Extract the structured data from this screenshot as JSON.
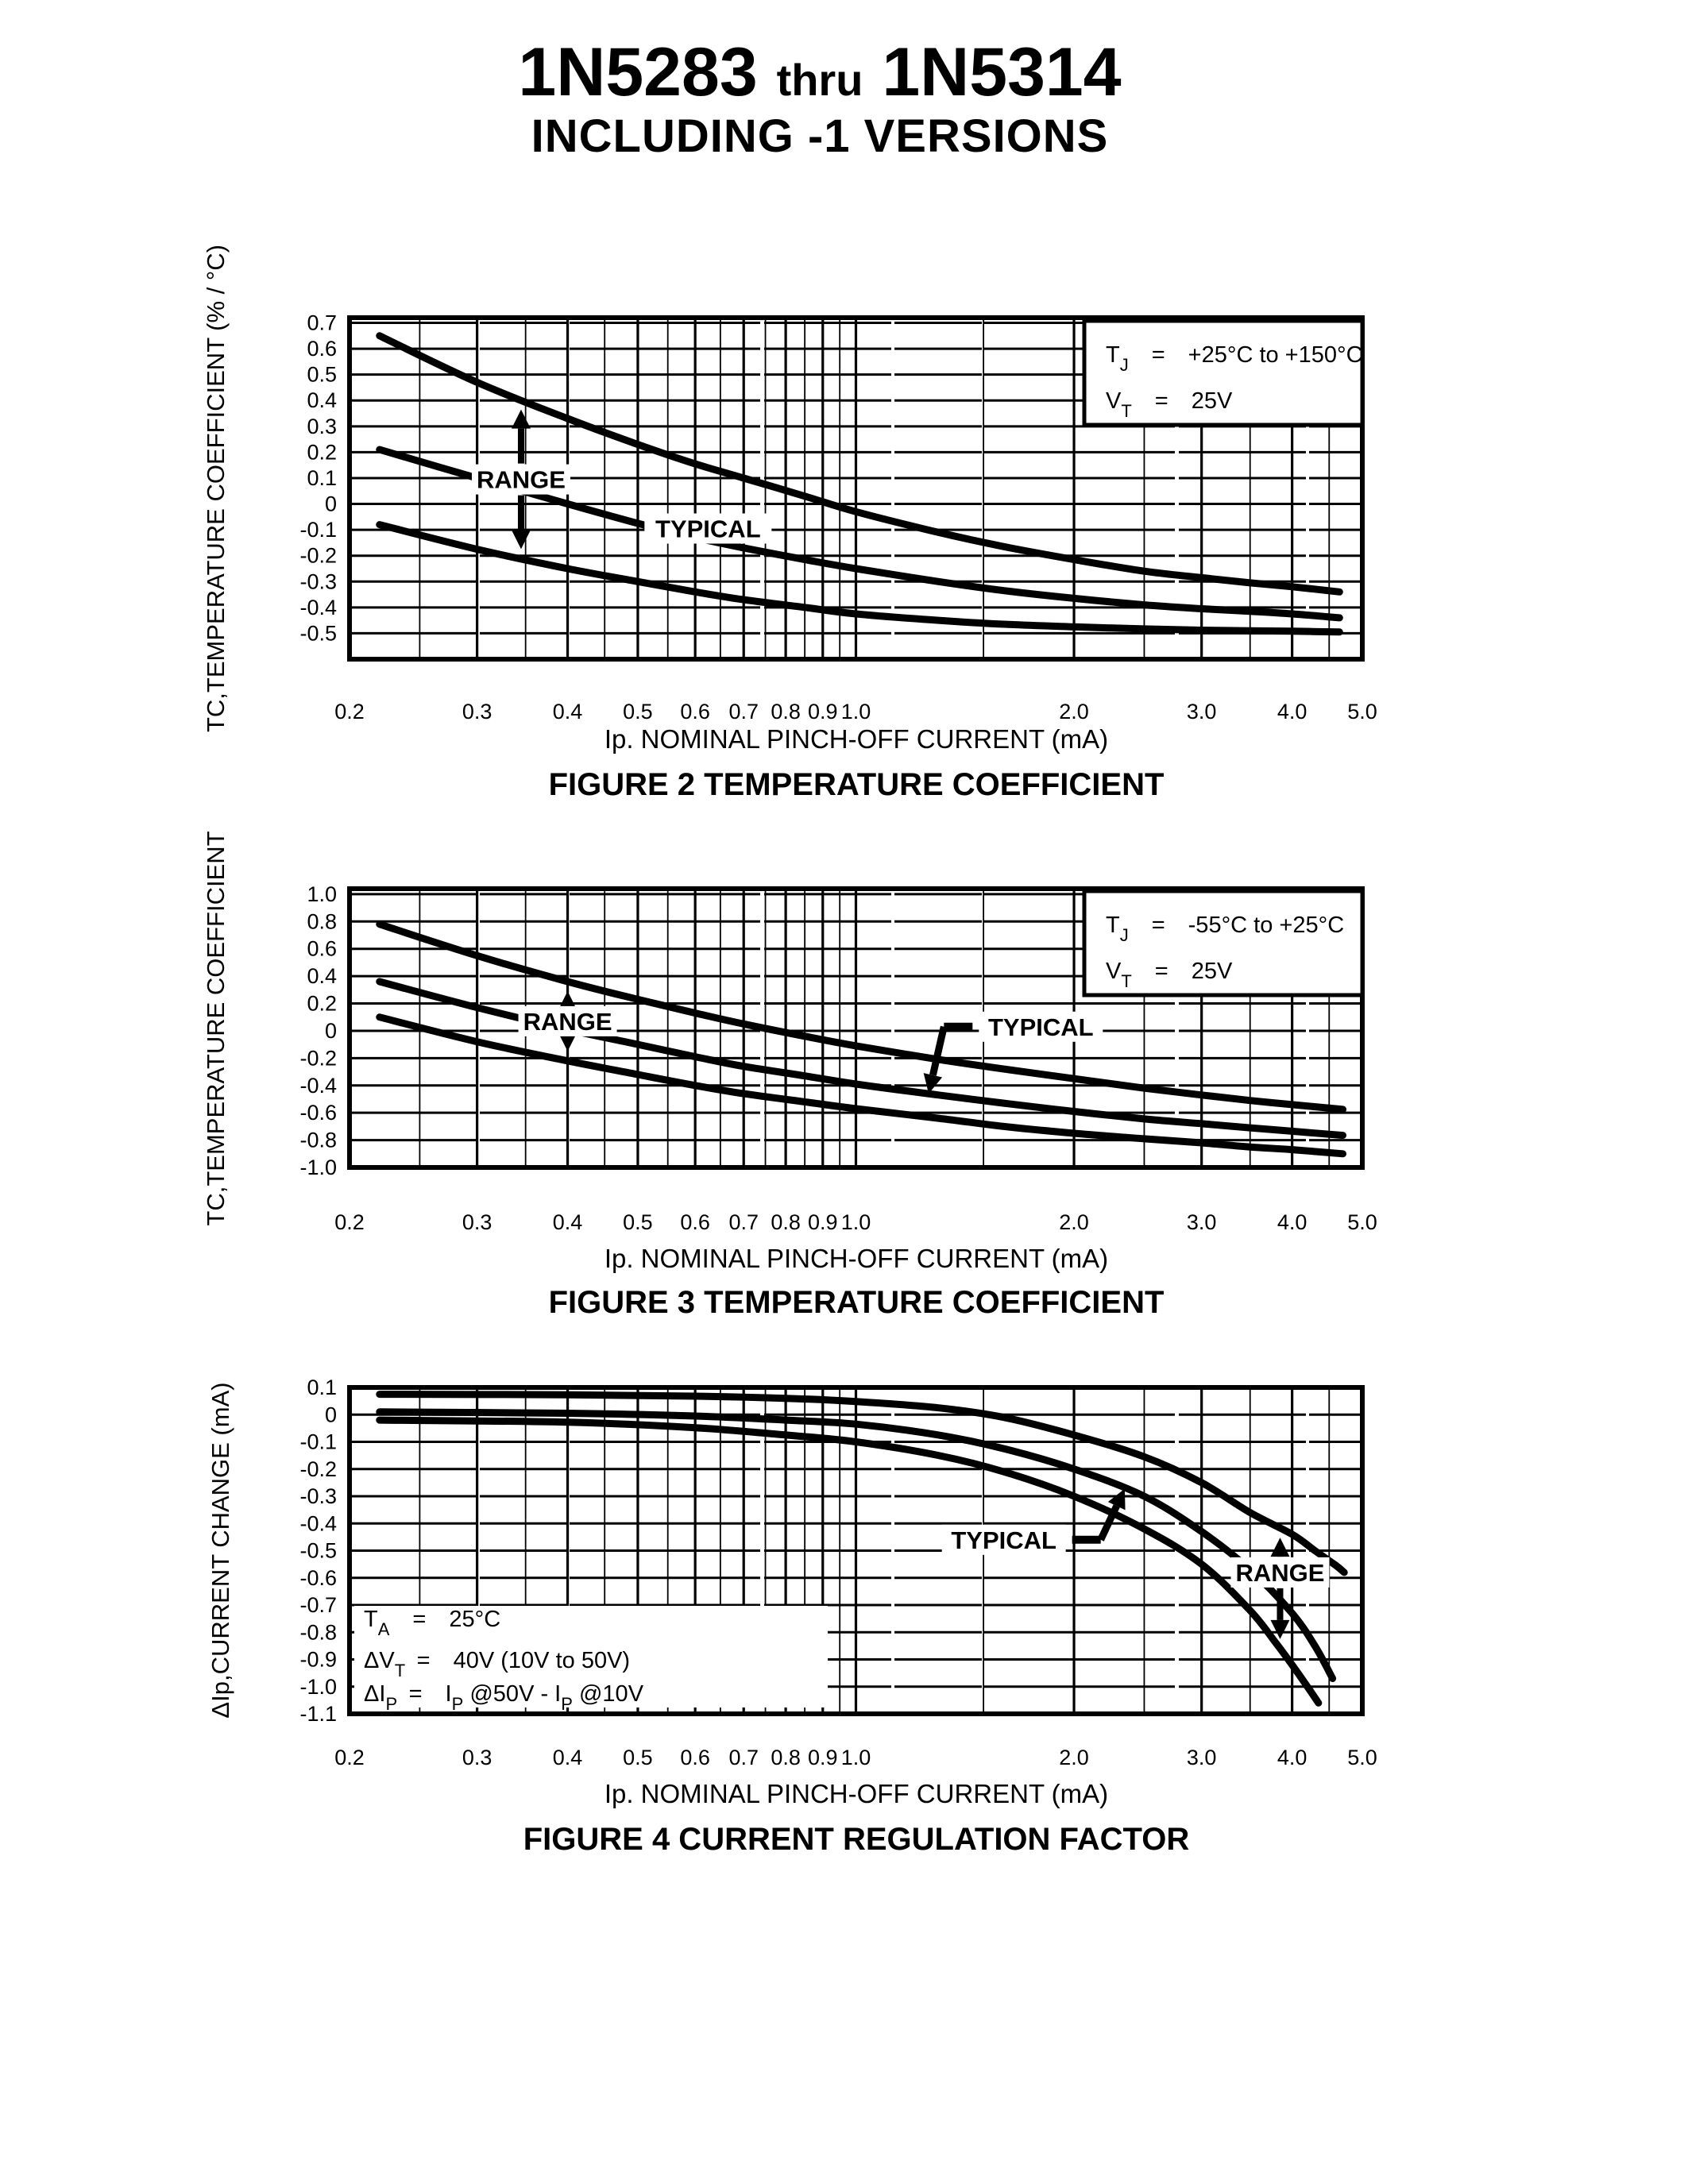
{
  "page": {
    "title_part1": "1N5283",
    "title_thru": "thru",
    "title_part2": "1N5314",
    "subtitle": "INCLUDING -1 VERSIONS"
  },
  "chart_data": [
    {
      "type": "line",
      "figure_number": "Figure 2",
      "title": "FIGURE 2 TEMPERATURE COEFFICIENT",
      "xlabel": "Ip. NOMINAL PINCH-OFF CURRENT (mA)",
      "ylabel": "TC,TEMPERATURE COEFFICIENT (% / °C)",
      "x_scale": "log",
      "grid": "on",
      "xlim": [
        0.2,
        5.0
      ],
      "ylim": [
        -0.6,
        0.72
      ],
      "x_ticks": [
        "0.2",
        "0.3",
        "0.4",
        "0.5",
        "0.6",
        "0.7",
        "0.8",
        "0.9",
        "1.0",
        "2.0",
        "3.0",
        "4.0",
        "5.0"
      ],
      "y_ticks": [
        "0.7",
        "0.6",
        "0.5",
        "0.4",
        "0.3",
        "0.2",
        "0.1",
        "0",
        "-0.1",
        "-0.2",
        "-0.3",
        "-0.4",
        "-0.5"
      ],
      "legend_lines": [
        [
          {
            "t": "T"
          },
          {
            "s": "J"
          },
          {
            "t": "  =  +25°C to +150°C"
          }
        ],
        [
          {
            "t": "V"
          },
          {
            "s": "T"
          },
          {
            "t": "  =  25V"
          }
        ]
      ],
      "annotations": {
        "range": "RANGE",
        "typical": "TYPICAL"
      },
      "series": [
        {
          "name": "range-maximum",
          "x": [
            0.22,
            0.3,
            0.4,
            0.5,
            0.6,
            0.7,
            0.85,
            1.0,
            1.3,
            1.6,
            2.0,
            2.5,
            3.0,
            3.5,
            4.0,
            4.65
          ],
          "y": [
            0.65,
            0.47,
            0.33,
            0.23,
            0.155,
            0.1,
            0.03,
            -0.03,
            -0.11,
            -0.165,
            -0.215,
            -0.26,
            -0.285,
            -0.305,
            -0.32,
            -0.34
          ]
        },
        {
          "name": "typical",
          "x": [
            0.22,
            0.3,
            0.4,
            0.5,
            0.6,
            0.7,
            0.85,
            1.0,
            1.3,
            1.6,
            2.0,
            2.5,
            3.0,
            3.5,
            4.0,
            4.65
          ],
          "y": [
            0.21,
            0.1,
            0.0,
            -0.075,
            -0.13,
            -0.17,
            -0.215,
            -0.25,
            -0.3,
            -0.335,
            -0.365,
            -0.39,
            -0.405,
            -0.415,
            -0.425,
            -0.44
          ]
        },
        {
          "name": "range-minimum",
          "x": [
            0.22,
            0.3,
            0.4,
            0.5,
            0.6,
            0.7,
            0.85,
            1.0,
            1.3,
            1.6,
            2.0,
            2.5,
            3.0,
            3.5,
            4.0,
            4.65
          ],
          "y": [
            -0.08,
            -0.175,
            -0.25,
            -0.3,
            -0.34,
            -0.37,
            -0.4,
            -0.425,
            -0.45,
            -0.465,
            -0.475,
            -0.483,
            -0.488,
            -0.49,
            -0.492,
            -0.495
          ]
        }
      ]
    },
    {
      "type": "line",
      "figure_number": "Figure 3",
      "title": "FIGURE 3 TEMPERATURE COEFFICIENT",
      "xlabel": "Ip. NOMINAL PINCH-OFF CURRENT (mA)",
      "ylabel": "TC,TEMPERATURE COEFFICIENT",
      "x_scale": "log",
      "grid": "on",
      "xlim": [
        0.2,
        5.0
      ],
      "ylim": [
        -1.0,
        1.04
      ],
      "x_ticks": [
        "0.2",
        "0.3",
        "0.4",
        "0.5",
        "0.6",
        "0.7",
        "0.8",
        "0.9",
        "1.0",
        "2.0",
        "3.0",
        "4.0",
        "5.0"
      ],
      "y_ticks": [
        "1.0",
        "0.8",
        "0.6",
        "0.4",
        "0.2",
        "0",
        "-0.2",
        "-0.4",
        "-0.6",
        "-0.8",
        "-1.0"
      ],
      "legend_lines": [
        [
          {
            "t": "T"
          },
          {
            "s": "J"
          },
          {
            "t": "  =  -55°C to +25°C"
          }
        ],
        [
          {
            "t": "V"
          },
          {
            "s": "T"
          },
          {
            "t": "  =  25V"
          }
        ]
      ],
      "annotations": {
        "range": "RANGE",
        "typical": "TYPICAL"
      },
      "series": [
        {
          "name": "range-maximum",
          "x": [
            0.22,
            0.3,
            0.4,
            0.5,
            0.6,
            0.7,
            0.85,
            1.0,
            1.3,
            1.6,
            2.0,
            2.5,
            3.0,
            3.5,
            4.0,
            4.7
          ],
          "y": [
            0.78,
            0.55,
            0.36,
            0.23,
            0.13,
            0.05,
            -0.04,
            -0.11,
            -0.21,
            -0.28,
            -0.35,
            -0.42,
            -0.47,
            -0.51,
            -0.54,
            -0.575
          ]
        },
        {
          "name": "typical",
          "x": [
            0.22,
            0.3,
            0.4,
            0.5,
            0.6,
            0.7,
            0.85,
            1.0,
            1.3,
            1.6,
            2.0,
            2.5,
            3.0,
            3.5,
            4.0,
            4.7
          ],
          "y": [
            0.36,
            0.17,
            0.01,
            -0.1,
            -0.19,
            -0.26,
            -0.33,
            -0.39,
            -0.47,
            -0.53,
            -0.59,
            -0.645,
            -0.68,
            -0.71,
            -0.735,
            -0.765
          ]
        },
        {
          "name": "range-minimum",
          "x": [
            0.22,
            0.3,
            0.4,
            0.5,
            0.6,
            0.7,
            0.85,
            1.0,
            1.3,
            1.6,
            2.0,
            2.5,
            3.0,
            3.5,
            4.0,
            4.7
          ],
          "y": [
            0.1,
            -0.08,
            -0.22,
            -0.32,
            -0.4,
            -0.46,
            -0.52,
            -0.57,
            -0.64,
            -0.7,
            -0.75,
            -0.79,
            -0.82,
            -0.85,
            -0.87,
            -0.9
          ]
        }
      ]
    },
    {
      "type": "line",
      "figure_number": "Figure 4",
      "title": "FIGURE 4 CURRENT REGULATION FACTOR",
      "xlabel": "Ip. NOMINAL PINCH-OFF CURRENT (mA)",
      "ylabel": "ΔIp,CURRENT CHANGE (mA)",
      "x_scale": "log",
      "grid": "on",
      "xlim": [
        0.2,
        5.0
      ],
      "ylim": [
        -1.1,
        0.1
      ],
      "x_ticks": [
        "0.2",
        "0.3",
        "0.4",
        "0.5",
        "0.6",
        "0.7",
        "0.8",
        "0.9",
        "1.0",
        "2.0",
        "3.0",
        "4.0",
        "5.0"
      ],
      "y_ticks": [
        "0.1",
        "0",
        "-0.1",
        "-0.2",
        "-0.3",
        "-0.4",
        "-0.5",
        "-0.6",
        "-0.7",
        "-0.8",
        "-0.9",
        "-1.0",
        "-1.1"
      ],
      "conditions_lines": [
        [
          {
            "t": "T"
          },
          {
            "s": "A"
          },
          {
            "t": "  =  25°C"
          }
        ],
        [
          {
            "t": "ΔV"
          },
          {
            "s": "T"
          },
          {
            "t": " =  40V (10V to 50V)"
          }
        ],
        [
          {
            "t": "ΔI"
          },
          {
            "s": "P"
          },
          {
            "t": " =  I"
          },
          {
            "s": "P"
          },
          {
            "t": " @50V - I"
          },
          {
            "s": "P"
          },
          {
            "t": " @10V"
          }
        ]
      ],
      "annotations": {
        "range": "RANGE",
        "typical": "TYPICAL"
      },
      "series": [
        {
          "name": "range-maximum",
          "x": [
            0.22,
            0.4,
            0.6,
            0.8,
            1.0,
            1.3,
            1.6,
            2.0,
            2.5,
            3.0,
            3.5,
            4.0,
            4.3,
            4.6,
            4.72
          ],
          "y": [
            0.075,
            0.073,
            0.068,
            0.06,
            0.048,
            0.025,
            -0.01,
            -0.075,
            -0.155,
            -0.25,
            -0.36,
            -0.44,
            -0.5,
            -0.555,
            -0.58
          ]
        },
        {
          "name": "typical",
          "x": [
            0.22,
            0.4,
            0.6,
            0.8,
            1.0,
            1.3,
            1.6,
            2.0,
            2.5,
            3.0,
            3.5,
            4.0,
            4.3,
            4.55
          ],
          "y": [
            0.01,
            0.005,
            -0.005,
            -0.02,
            -0.035,
            -0.075,
            -0.125,
            -0.2,
            -0.3,
            -0.43,
            -0.57,
            -0.73,
            -0.85,
            -0.97
          ]
        },
        {
          "name": "range-minimum",
          "x": [
            0.22,
            0.4,
            0.6,
            0.8,
            1.0,
            1.3,
            1.6,
            2.0,
            2.5,
            3.0,
            3.5,
            3.8,
            4.0,
            4.2,
            4.35
          ],
          "y": [
            -0.02,
            -0.028,
            -0.048,
            -0.075,
            -0.1,
            -0.15,
            -0.21,
            -0.3,
            -0.42,
            -0.55,
            -0.72,
            -0.84,
            -0.92,
            -1.0,
            -1.06
          ]
        }
      ]
    }
  ]
}
